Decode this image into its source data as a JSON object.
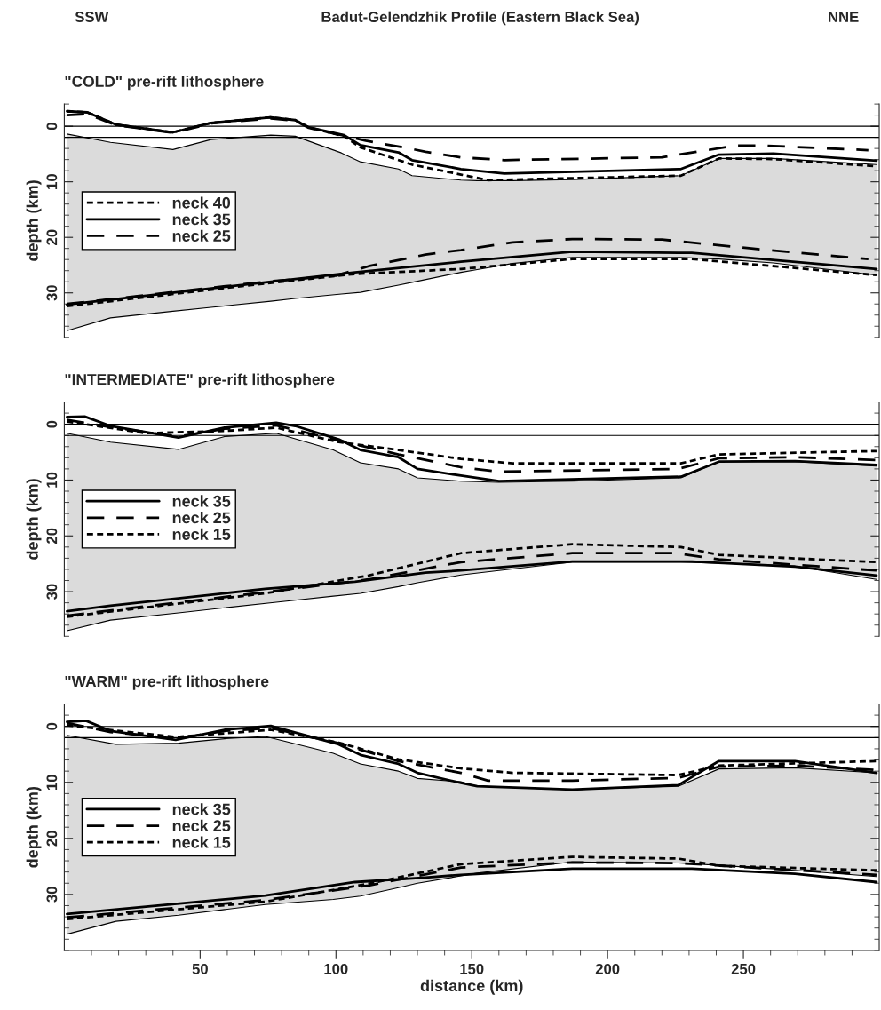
{
  "chart_data": [
    {
      "type": "line",
      "title": "\"COLD\" pre-rift lithosphere",
      "ylabel": "depth (km)",
      "annotations": [
        "SSW",
        "Badut-Gelendzhik Profile (Eastern Black Sea)",
        "NNE"
      ],
      "xlim": [
        0,
        300
      ],
      "ylim": [
        38,
        -4
      ],
      "tick_labels": "y",
      "legend": "left",
      "yticks": [
        {
          "value": -4,
          "label": null
        },
        {
          "value": -2,
          "label": null
        },
        0,
        {
          "value": 2,
          "label": null
        },
        {
          "value": 4,
          "label": null
        },
        {
          "value": 6,
          "label": null
        },
        {
          "value": 8,
          "label": null
        },
        10,
        {
          "value": 12,
          "label": null
        },
        {
          "value": 14,
          "label": null
        },
        {
          "value": 16,
          "label": null
        },
        {
          "value": 18,
          "label": null
        },
        20,
        {
          "value": 22,
          "label": null
        },
        {
          "value": 24,
          "label": null
        },
        {
          "value": 26,
          "label": null
        },
        {
          "value": 28,
          "label": null
        },
        30,
        {
          "value": 32,
          "label": null
        },
        {
          "value": 34,
          "label": null
        },
        {
          "value": 36,
          "label": null
        },
        {
          "value": 38,
          "label": null
        }
      ],
      "ref_lines": [
        {
          "axis": "y",
          "value": 0,
          "color": "#000000"
        },
        {
          "axis": "y",
          "value": 2,
          "color": "#000000"
        }
      ],
      "series": [
        {
          "type": "line",
          "color": "#000000",
          "x": [
            1,
            17,
            40,
            54,
            76,
            85,
            102,
            109,
            123,
            128,
            146,
            152,
            165,
            187,
            227,
            241,
            261,
            299
          ],
          "values": [
            1.4,
            2.9,
            4.2,
            2.4,
            1.6,
            1.8,
            4.8,
            6.4,
            7.7,
            8.9,
            9.7,
            9.8,
            9.8,
            9.6,
            8.9,
            5.8,
            5.8,
            6.9
          ],
          "lower": [
            1.4,
            2.9,
            4.2,
            2.4,
            1.6,
            1.8,
            4.8,
            6.4,
            7.7,
            8.9,
            9.7,
            9.8,
            9.8,
            9.6,
            8.9,
            5.8,
            5.8,
            6.9
          ],
          "upper": [
            36.8,
            34.5,
            33.3,
            32.6,
            31.5,
            31.0,
            30.2,
            29.9,
            28.6,
            28.1,
            26.3,
            25.8,
            24.7,
            23.6,
            23.6,
            23.9,
            24.6,
            26.8
          ]
        },
        {
          "type": "line",
          "color": "#000000",
          "x": [
            1,
            17,
            40,
            54,
            76,
            85,
            102,
            109,
            123,
            128,
            146,
            152,
            165,
            187,
            227,
            241,
            261,
            299
          ],
          "values": [
            36.8,
            34.5,
            33.3,
            32.6,
            31.5,
            31.0,
            30.2,
            29.9,
            28.6,
            28.1,
            26.3,
            25.8,
            24.7,
            23.6,
            23.6,
            23.9,
            24.6,
            26.8
          ]
        },
        {
          "name": "neck 40",
          "color": "#000000",
          "line_style": "dotted",
          "x": [
            1,
            8.5,
            19,
            40,
            54,
            76,
            85,
            90,
            103,
            109,
            128,
            146,
            156,
            227,
            241,
            261,
            299
          ],
          "values": [
            -2.7,
            -2.5,
            -0.3,
            1.1,
            -0.6,
            -1.6,
            -1.1,
            0.2,
            1.8,
            3.8,
            6.9,
            8.7,
            9.7,
            8.9,
            5.8,
            5.9,
            7.2
          ]
        },
        {
          "name": "neck 35",
          "color": "#000000",
          "line_style": "solid",
          "x": [
            1,
            8.5,
            19,
            40,
            54,
            76,
            85,
            90,
            103,
            109,
            123,
            128,
            146,
            162,
            227,
            241,
            261,
            299
          ],
          "values": [
            -2.7,
            -2.5,
            -0.3,
            1.1,
            -0.6,
            -1.6,
            -1.1,
            0.2,
            1.6,
            3.4,
            4.7,
            6.1,
            7.7,
            8.5,
            7.7,
            5.1,
            4.9,
            6.2
          ]
        },
        {
          "name": "neck 25",
          "color": "#000000",
          "line_style": "dashed",
          "x": [
            1,
            8.5,
            19,
            40,
            54,
            76,
            85,
            90,
            103,
            111,
            128,
            133,
            146,
            162,
            220,
            247,
            258,
            296
          ],
          "values": [
            -2.0,
            -2.2,
            -0.2,
            1.2,
            -0.5,
            -1.4,
            -1.0,
            0.3,
            1.7,
            2.6,
            4.1,
            4.6,
            5.6,
            6.1,
            5.6,
            3.5,
            3.5,
            4.3
          ]
        },
        {
          "color": "#000000",
          "line_style": "dotted",
          "x": [
            1,
            74,
            107,
            133,
            146,
            187,
            231,
            299
          ],
          "values": [
            32.4,
            28.3,
            26.6,
            26.0,
            25.7,
            23.9,
            23.9,
            26.8
          ]
        },
        {
          "color": "#000000",
          "line_style": "solid",
          "x": [
            1,
            74,
            107,
            146,
            187,
            231,
            299
          ],
          "values": [
            32.1,
            28.1,
            26.3,
            24.4,
            22.6,
            22.8,
            25.7
          ]
        },
        {
          "color": "#000000",
          "line_style": "dashed",
          "x": [
            1,
            74,
            100,
            112,
            133,
            146,
            165,
            187,
            220,
            253,
            296
          ],
          "values": [
            32.0,
            28.0,
            26.9,
            25.2,
            23.1,
            22.3,
            20.9,
            20.3,
            20.4,
            22.0,
            23.9
          ]
        }
      ]
    },
    {
      "type": "line",
      "title": "\"INTERMEDIATE\" pre-rift lithosphere",
      "ylabel": "depth (km)",
      "xlim": [
        0,
        300
      ],
      "ylim": [
        38,
        -4
      ],
      "tick_labels": "y",
      "legend": "left",
      "yticks": [
        {
          "value": -4,
          "label": null
        },
        {
          "value": -2,
          "label": null
        },
        0,
        {
          "value": 2,
          "label": null
        },
        {
          "value": 4,
          "label": null
        },
        {
          "value": 6,
          "label": null
        },
        {
          "value": 8,
          "label": null
        },
        10,
        {
          "value": 12,
          "label": null
        },
        {
          "value": 14,
          "label": null
        },
        {
          "value": 16,
          "label": null
        },
        {
          "value": 18,
          "label": null
        },
        20,
        {
          "value": 22,
          "label": null
        },
        {
          "value": 24,
          "label": null
        },
        {
          "value": 26,
          "label": null
        },
        {
          "value": 28,
          "label": null
        },
        30,
        {
          "value": 32,
          "label": null
        },
        {
          "value": 34,
          "label": null
        },
        {
          "value": 36,
          "label": null
        },
        {
          "value": 38,
          "label": null
        }
      ],
      "ref_lines": [
        {
          "axis": "y",
          "value": 0,
          "color": "#000000"
        },
        {
          "axis": "y",
          "value": 2,
          "color": "#000000"
        }
      ],
      "series": [
        {
          "type": "line",
          "color": "#000000",
          "x": [
            1,
            17,
            42,
            59,
            78,
            99,
            109,
            123,
            130,
            146,
            160,
            187,
            227,
            241,
            269,
            299
          ],
          "values": [
            1.6,
            3.2,
            4.5,
            2.2,
            1.6,
            4.6,
            6.9,
            8.0,
            9.6,
            10.2,
            10.4,
            10.2,
            9.6,
            6.7,
            6.7,
            7.5
          ],
          "lower": [
            1.6,
            3.2,
            4.5,
            2.2,
            1.6,
            4.6,
            6.9,
            8.0,
            9.6,
            10.2,
            10.4,
            10.2,
            9.6,
            6.7,
            6.7,
            7.5
          ],
          "upper": [
            37.0,
            35.1,
            33.8,
            32.9,
            31.9,
            30.8,
            30.3,
            29.1,
            28.4,
            27.0,
            26.2,
            24.7,
            24.7,
            24.9,
            25.4,
            27.8
          ]
        },
        {
          "type": "line",
          "color": "#000000",
          "x": [
            1,
            17,
            42,
            59,
            78,
            99,
            109,
            123,
            130,
            146,
            160,
            187,
            227,
            241,
            269,
            299
          ],
          "values": [
            37.0,
            35.1,
            33.8,
            32.9,
            31.9,
            30.8,
            30.3,
            29.1,
            28.4,
            27.0,
            26.2,
            24.7,
            24.7,
            24.9,
            25.4,
            27.8
          ]
        },
        {
          "name": "neck 35",
          "color": "#000000",
          "line_style": "solid",
          "x": [
            1,
            7.5,
            17,
            42,
            59,
            78,
            85,
            101,
            109,
            123,
            130,
            146,
            160,
            227,
            241,
            269,
            299
          ],
          "values": [
            -1.3,
            -1.4,
            0.3,
            2.4,
            0.6,
            -0.3,
            0.3,
            2.7,
            4.6,
            5.9,
            8.0,
            9.2,
            10.2,
            9.4,
            6.7,
            6.6,
            7.3
          ]
        },
        {
          "name": "neck 25",
          "color": "#000000",
          "line_style": "dashed",
          "x": [
            1,
            17,
            42,
            59,
            78,
            101,
            123,
            146,
            160,
            226,
            241,
            269,
            299
          ],
          "values": [
            -0.8,
            0.5,
            2.2,
            0.8,
            0.2,
            2.9,
            5.4,
            7.7,
            8.5,
            8.0,
            6.1,
            5.9,
            6.4
          ]
        },
        {
          "name": "neck 15",
          "color": "#000000",
          "line_style": "dotted",
          "x": [
            1,
            30,
            59,
            78,
            101,
            123,
            146,
            165,
            227,
            241,
            299
          ],
          "values": [
            -0.5,
            1.6,
            1.2,
            0.6,
            3.2,
            4.6,
            6.2,
            7.0,
            7.0,
            5.4,
            4.8
          ]
        },
        {
          "color": "#000000",
          "line_style": "solid",
          "x": [
            1,
            17,
            74,
            107,
            133,
            146,
            187,
            231,
            269,
            299
          ],
          "values": [
            33.5,
            32.5,
            29.5,
            28.2,
            26.6,
            26.2,
            24.6,
            24.6,
            25.5,
            27.1
          ]
        },
        {
          "color": "#000000",
          "line_style": "dashed",
          "x": [
            1,
            74,
            112,
            146,
            187,
            225,
            241,
            299
          ],
          "values": [
            34.3,
            30.1,
            27.8,
            24.7,
            23.1,
            23.1,
            24.2,
            26.2
          ]
        },
        {
          "color": "#000000",
          "line_style": "dotted",
          "x": [
            1,
            74,
            112,
            146,
            187,
            227,
            241,
            299
          ],
          "values": [
            34.5,
            30.3,
            27.1,
            23.1,
            21.5,
            22.0,
            23.4,
            24.7
          ]
        }
      ]
    },
    {
      "type": "line",
      "title": "\"WARM\" pre-rift lithosphere",
      "ylabel": "depth (km)",
      "xlabel": "distance (km)",
      "xlim": [
        0,
        300
      ],
      "ylim": [
        40,
        -4
      ],
      "legend": "left",
      "xticks": [
        {
          "value": 10,
          "label": null
        },
        {
          "value": 20,
          "label": null
        },
        {
          "value": 30,
          "label": null
        },
        {
          "value": 40,
          "label": null
        },
        50,
        {
          "value": 60,
          "label": null
        },
        {
          "value": 70,
          "label": null
        },
        {
          "value": 80,
          "label": null
        },
        {
          "value": 90,
          "label": null
        },
        100,
        {
          "value": 110,
          "label": null
        },
        {
          "value": 120,
          "label": null
        },
        {
          "value": 130,
          "label": null
        },
        {
          "value": 140,
          "label": null
        },
        150,
        {
          "value": 160,
          "label": null
        },
        {
          "value": 170,
          "label": null
        },
        {
          "value": 180,
          "label": null
        },
        {
          "value": 190,
          "label": null
        },
        200,
        {
          "value": 210,
          "label": null
        },
        {
          "value": 220,
          "label": null
        },
        {
          "value": 230,
          "label": null
        },
        {
          "value": 240,
          "label": null
        },
        250,
        {
          "value": 260,
          "label": null
        },
        {
          "value": 270,
          "label": null
        },
        {
          "value": 280,
          "label": null
        },
        {
          "value": 290,
          "label": null
        }
      ],
      "yticks": [
        {
          "value": -4,
          "label": null
        },
        {
          "value": -2,
          "label": null
        },
        0,
        {
          "value": 2,
          "label": null
        },
        {
          "value": 4,
          "label": null
        },
        {
          "value": 6,
          "label": null
        },
        {
          "value": 8,
          "label": null
        },
        10,
        {
          "value": 12,
          "label": null
        },
        {
          "value": 14,
          "label": null
        },
        {
          "value": 16,
          "label": null
        },
        {
          "value": 18,
          "label": null
        },
        20,
        {
          "value": 22,
          "label": null
        },
        {
          "value": 24,
          "label": null
        },
        {
          "value": 26,
          "label": null
        },
        {
          "value": 28,
          "label": null
        },
        30,
        {
          "value": 32,
          "label": null
        },
        {
          "value": 34,
          "label": null
        },
        {
          "value": 36,
          "label": null
        },
        {
          "value": 38,
          "label": null
        },
        {
          "value": 40,
          "label": null
        }
      ],
      "ref_lines": [
        {
          "axis": "y",
          "value": 0,
          "color": "#000000"
        },
        {
          "axis": "y",
          "value": 2,
          "color": "#000000"
        }
      ],
      "series": [
        {
          "type": "line",
          "color": "#000000",
          "x": [
            1,
            19,
            42,
            59,
            74,
            99,
            109,
            123,
            130,
            146,
            152,
            187,
            226,
            241,
            269,
            299
          ],
          "values": [
            1.6,
            3.2,
            3.0,
            2.2,
            1.8,
            4.8,
            6.7,
            8.0,
            9.3,
            9.9,
            10.7,
            11.3,
            10.7,
            7.6,
            7.4,
            8.3
          ],
          "lower": [
            1.6,
            3.2,
            3.0,
            2.2,
            1.8,
            4.8,
            6.7,
            8.0,
            9.3,
            9.9,
            10.7,
            11.3,
            10.7,
            7.6,
            7.4,
            8.3
          ],
          "upper": [
            37.1,
            34.8,
            33.7,
            32.7,
            31.8,
            30.9,
            30.3,
            28.8,
            28.0,
            26.7,
            26.2,
            24.2,
            24.4,
            24.8,
            25.7,
            26.8
          ]
        },
        {
          "type": "line",
          "color": "#000000",
          "x": [
            1,
            19,
            42,
            59,
            74,
            99,
            109,
            123,
            130,
            146,
            152,
            187,
            226,
            241,
            269,
            299
          ],
          "values": [
            37.1,
            34.8,
            33.7,
            32.7,
            31.8,
            30.9,
            30.3,
            28.8,
            28.0,
            26.7,
            26.2,
            24.2,
            24.4,
            24.8,
            25.7,
            26.8
          ]
        },
        {
          "name": "neck 35",
          "color": "#000000",
          "line_style": "solid",
          "x": [
            1,
            8,
            17,
            41,
            59,
            76,
            101,
            109,
            123,
            130,
            146,
            152,
            187,
            226,
            241,
            269,
            299
          ],
          "values": [
            -0.8,
            -1.0,
            0.8,
            2.4,
            0.6,
            -0.1,
            3.2,
            5.1,
            6.7,
            8.3,
            10.1,
            10.7,
            11.3,
            10.5,
            6.2,
            6.2,
            8.3
          ]
        },
        {
          "name": "neck 25",
          "color": "#000000",
          "line_style": "dashed",
          "x": [
            1,
            17,
            41,
            59,
            76,
            101,
            123,
            146,
            156,
            187,
            226,
            241,
            269,
            299
          ],
          "values": [
            -0.6,
            1.0,
            2.2,
            0.8,
            0.3,
            3.0,
            6.2,
            8.3,
            9.7,
            9.7,
            9.2,
            7.2,
            7.0,
            7.8
          ]
        },
        {
          "name": "neck 15",
          "color": "#000000",
          "line_style": "dotted",
          "x": [
            1,
            41,
            76,
            101,
            123,
            146,
            165,
            226,
            241,
            299
          ],
          "values": [
            -0.2,
            1.9,
            0.6,
            2.9,
            5.9,
            7.5,
            8.3,
            8.7,
            7.0,
            6.2
          ]
        },
        {
          "color": "#000000",
          "line_style": "solid",
          "x": [
            1,
            74,
            107,
            133,
            146,
            187,
            231,
            269,
            299
          ],
          "values": [
            33.5,
            30.2,
            27.8,
            27.0,
            26.5,
            25.4,
            25.4,
            26.3,
            27.8
          ]
        },
        {
          "color": "#000000",
          "line_style": "dashed",
          "x": [
            1,
            74,
            112,
            146,
            187,
            226,
            253,
            299
          ],
          "values": [
            34.1,
            31.0,
            28.4,
            25.2,
            24.3,
            24.4,
            25.2,
            26.5
          ]
        },
        {
          "color": "#000000",
          "line_style": "dotted",
          "x": [
            1,
            74,
            112,
            146,
            187,
            226,
            241,
            299
          ],
          "values": [
            34.4,
            31.3,
            28.1,
            24.6,
            23.3,
            23.6,
            24.9,
            25.7
          ]
        }
      ]
    }
  ]
}
